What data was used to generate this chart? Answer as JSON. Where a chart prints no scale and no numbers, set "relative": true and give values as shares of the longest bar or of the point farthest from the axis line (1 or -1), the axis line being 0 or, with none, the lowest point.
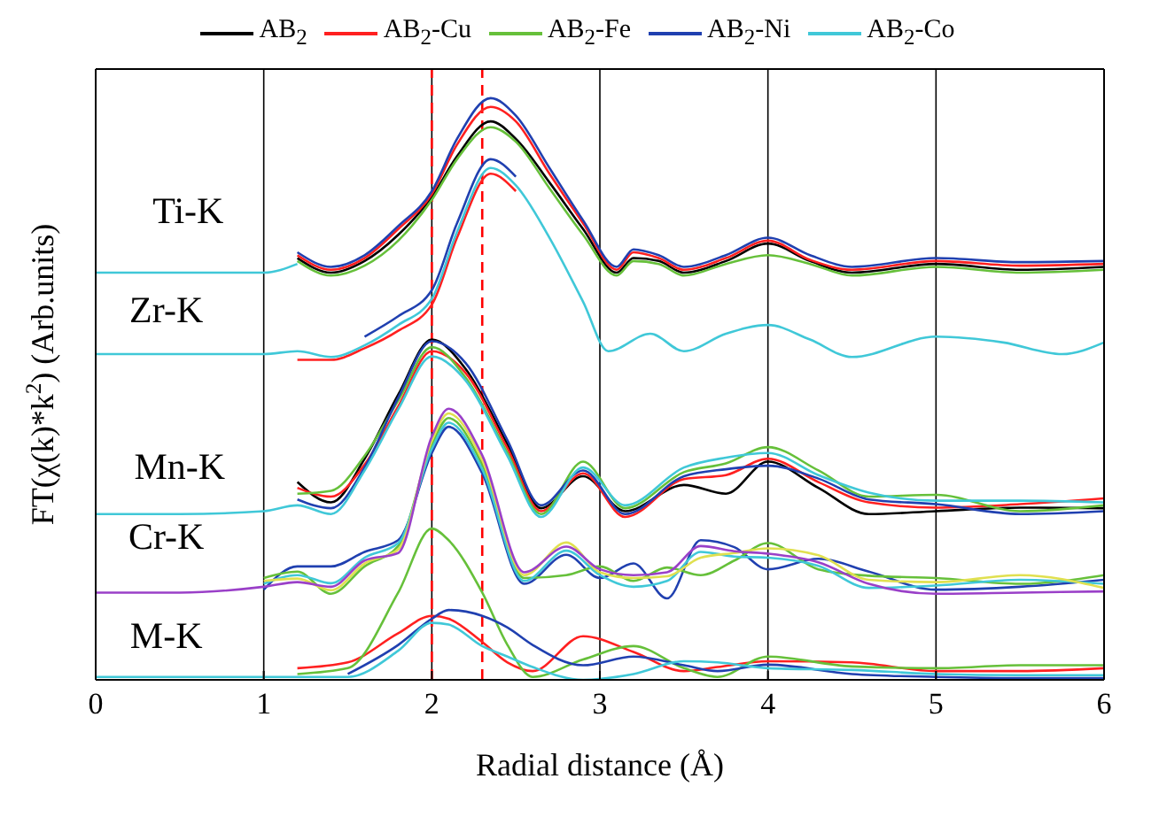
{
  "chart_data": {
    "type": "line",
    "relative": true,
    "xlabel": "Radial distance (Å)",
    "ylabel": "FT(χ(k)*k$^{2}$) (Arb.units)",
    "xlim": [
      0,
      6
    ],
    "xticks": [
      0,
      1,
      2,
      3,
      4,
      5,
      6
    ],
    "grid": "x",
    "legend": "top",
    "line_style": "solid",
    "ref_lines": [
      {
        "axis": "x",
        "value": 2.0,
        "color": "#ff0000",
        "line_style": "dashed"
      },
      {
        "axis": "x",
        "value": 2.3,
        "color": "#ff0000",
        "line_style": "dashed"
      }
    ],
    "annotations": [
      "Ti-K",
      "Zr-K",
      "Mn-K",
      "Cr-K",
      "M-K"
    ],
    "series": [
      {
        "name": "AB$_{2}$",
        "color": "#000000",
        "x": [
          1.2,
          1.4,
          1.6,
          1.8,
          2,
          2.15,
          2.35,
          2.5,
          2.7,
          2.9,
          3.1,
          3.2,
          3.35,
          3.5,
          3.75,
          4,
          4.25,
          4.5,
          5,
          5.5,
          6
        ],
        "values": [
          0.725,
          0.7,
          0.72,
          0.765,
          0.83,
          0.9,
          0.96,
          0.93,
          0.855,
          0.775,
          0.7,
          0.725,
          0.72,
          0.7,
          0.72,
          0.75,
          0.72,
          0.7,
          0.715,
          0.705,
          0.71
        ]
      },
      {
        "name": "AB$_{2}$-Cu",
        "color": "#ff2020",
        "x": [
          1.2,
          1.4,
          1.6,
          1.8,
          2,
          2.15,
          2.35,
          2.5,
          2.7,
          2.9,
          3.1,
          3.2,
          3.35,
          3.5,
          3.75,
          4,
          4.25,
          4.5,
          5,
          5.5,
          6
        ],
        "values": [
          0.73,
          0.705,
          0.725,
          0.775,
          0.835,
          0.92,
          0.985,
          0.96,
          0.87,
          0.785,
          0.705,
          0.735,
          0.725,
          0.705,
          0.725,
          0.755,
          0.722,
          0.705,
          0.72,
          0.712,
          0.715
        ]
      },
      {
        "name": "AB$_{2}$-Fe",
        "color": "#66c03a",
        "x": [
          1.2,
          1.4,
          1.6,
          1.8,
          2,
          2.15,
          2.35,
          2.5,
          2.7,
          2.9,
          3.1,
          3.2,
          3.35,
          3.5,
          3.75,
          4,
          4.25,
          4.5,
          5,
          5.5,
          6
        ],
        "values": [
          0.72,
          0.695,
          0.712,
          0.755,
          0.825,
          0.895,
          0.95,
          0.925,
          0.845,
          0.765,
          0.695,
          0.72,
          0.715,
          0.695,
          0.715,
          0.73,
          0.715,
          0.695,
          0.71,
          0.7,
          0.705
        ]
      },
      {
        "name": "AB$_{2}$-Ni",
        "color": "#2040b0",
        "x": [
          1.2,
          1.4,
          1.6,
          1.8,
          2,
          2.15,
          2.35,
          2.5,
          2.7,
          2.9,
          3.1,
          3.2,
          3.35,
          3.5,
          3.75,
          4,
          4.25,
          4.5,
          5,
          5.5,
          6
        ],
        "values": [
          0.735,
          0.71,
          0.73,
          0.78,
          0.84,
          0.93,
          1.0,
          0.97,
          0.88,
          0.79,
          0.71,
          0.74,
          0.73,
          0.71,
          0.73,
          0.76,
          0.73,
          0.71,
          0.725,
          0.718,
          0.72
        ]
      },
      {
        "name": "AB$_{2}$-Co",
        "color": "#40c8d8",
        "x": [
          0,
          0.5,
          1,
          1.2
        ],
        "values": [
          0.7,
          0.7,
          0.7,
          0.715
        ]
      },
      {
        "color": "#ff2020",
        "x": [
          1.2,
          1.4,
          1.6,
          1.8,
          2,
          2.15,
          2.35,
          2.5
        ],
        "values": [
          0.55,
          0.55,
          0.57,
          0.6,
          0.645,
          0.76,
          0.87,
          0.84
        ]
      },
      {
        "color": "#2040b0",
        "x": [
          1.6,
          1.8,
          2,
          2.15,
          2.35,
          2.5
        ],
        "values": [
          0.59,
          0.625,
          0.67,
          0.785,
          0.895,
          0.865
        ]
      },
      {
        "color": "#40c8d8",
        "x": [
          0,
          0.5,
          1,
          1.2,
          1.4,
          1.6,
          1.8,
          2,
          2.15,
          2.35,
          2.5,
          2.7,
          2.9,
          3.05,
          3.3,
          3.5,
          3.75,
          4,
          4.25,
          4.5,
          5,
          5.4,
          5.75,
          6
        ],
        "values": [
          0.56,
          0.56,
          0.56,
          0.565,
          0.555,
          0.575,
          0.61,
          0.655,
          0.77,
          0.88,
          0.85,
          0.76,
          0.65,
          0.565,
          0.595,
          0.565,
          0.595,
          0.61,
          0.585,
          0.555,
          0.59,
          0.58,
          0.56,
          0.58
        ]
      },
      {
        "color": "#000000",
        "x": [
          1.2,
          1.4,
          1.6,
          1.8,
          2,
          2.2,
          2.45,
          2.65,
          2.9,
          3.15,
          3.5,
          3.75,
          4,
          4.3,
          4.6,
          5,
          5.5,
          6
        ],
        "values": [
          0.34,
          0.305,
          0.38,
          0.49,
          0.585,
          0.535,
          0.405,
          0.295,
          0.35,
          0.29,
          0.335,
          0.32,
          0.375,
          0.33,
          0.285,
          0.29,
          0.296,
          0.295
        ]
      },
      {
        "color": "#ff2020",
        "x": [
          1.2,
          1.4,
          1.6,
          1.8,
          2,
          2.2,
          2.45,
          2.65,
          2.9,
          3.15,
          3.5,
          3.75,
          4,
          4.3,
          4.6,
          5,
          5.5,
          6
        ],
        "values": [
          0.33,
          0.315,
          0.37,
          0.47,
          0.565,
          0.528,
          0.398,
          0.29,
          0.355,
          0.28,
          0.345,
          0.352,
          0.38,
          0.34,
          0.305,
          0.296,
          0.302,
          0.312
        ]
      },
      {
        "color": "#66c03a",
        "x": [
          1.2,
          1.4,
          1.6,
          1.8,
          2,
          2.2,
          2.45,
          2.65,
          2.9,
          3.15,
          3.5,
          3.75,
          4,
          4.3,
          4.6,
          5,
          5.5,
          6
        ],
        "values": [
          0.32,
          0.325,
          0.385,
          0.48,
          0.572,
          0.52,
          0.39,
          0.285,
          0.375,
          0.295,
          0.357,
          0.372,
          0.4,
          0.36,
          0.315,
          0.318,
          0.29,
          0.3
        ]
      },
      {
        "color": "#2040b0",
        "x": [
          1.2,
          1.4,
          1.6,
          1.8,
          2,
          2.2,
          2.45,
          2.65,
          2.9,
          3.15,
          3.5,
          3.75,
          4,
          4.3,
          4.6,
          5,
          5.5,
          6
        ],
        "values": [
          0.31,
          0.295,
          0.365,
          0.485,
          0.582,
          0.545,
          0.412,
          0.3,
          0.36,
          0.285,
          0.35,
          0.362,
          0.368,
          0.346,
          0.31,
          0.302,
          0.285,
          0.29
        ]
      },
      {
        "color": "#40c8d8",
        "x": [
          0,
          0.5,
          1,
          1.2,
          1.4,
          1.6,
          1.8,
          2,
          2.2,
          2.45,
          2.65,
          2.9,
          3.15,
          3.5,
          3.75,
          4,
          4.3,
          4.6,
          5,
          5.5,
          6
        ],
        "values": [
          0.285,
          0.285,
          0.29,
          0.3,
          0.285,
          0.36,
          0.465,
          0.556,
          0.515,
          0.385,
          0.28,
          0.365,
          0.3,
          0.365,
          0.382,
          0.39,
          0.352,
          0.322,
          0.308,
          0.308,
          0.305
        ]
      },
      {
        "color": "#2040b0",
        "x": [
          1,
          1.2,
          1.4,
          1.6,
          1.8,
          2,
          2.1,
          2.3,
          2.55,
          2.8,
          3,
          3.2,
          3.4,
          3.6,
          3.8,
          4,
          4.3,
          4.6,
          5,
          5.5,
          6
        ],
        "values": [
          0.155,
          0.195,
          0.195,
          0.22,
          0.24,
          0.39,
          0.435,
          0.355,
          0.165,
          0.215,
          0.175,
          0.2,
          0.14,
          0.24,
          0.228,
          0.19,
          0.208,
          0.186,
          0.155,
          0.16,
          0.172
        ]
      },
      {
        "color": "#66c03a",
        "x": [
          1,
          1.2,
          1.4,
          1.6,
          1.8,
          2,
          2.1,
          2.3,
          2.55,
          2.8,
          3,
          3.2,
          3.4,
          3.6,
          3.8,
          4,
          4.3,
          4.6,
          5,
          5.5,
          6
        ],
        "values": [
          0.175,
          0.186,
          0.148,
          0.195,
          0.23,
          0.404,
          0.45,
          0.37,
          0.175,
          0.18,
          0.195,
          0.17,
          0.193,
          0.18,
          0.205,
          0.235,
          0.19,
          0.179,
          0.175,
          0.165,
          0.18
        ]
      },
      {
        "color": "#40c8d8",
        "x": [
          1,
          1.2,
          1.4,
          1.6,
          1.8,
          2,
          2.1,
          2.3,
          2.55,
          2.8,
          3,
          3.2,
          3.4,
          3.6,
          3.8,
          4,
          4.3,
          4.6,
          5,
          5.5,
          6
        ],
        "values": [
          0.165,
          0.18,
          0.166,
          0.21,
          0.235,
          0.397,
          0.442,
          0.362,
          0.17,
          0.222,
          0.18,
          0.16,
          0.17,
          0.22,
          0.212,
          0.21,
          0.196,
          0.158,
          0.162,
          0.172,
          0.165
        ]
      },
      {
        "color": "#e0e050",
        "x": [
          1,
          1.2,
          1.4,
          1.6,
          1.8,
          2,
          2.1,
          2.3,
          2.55,
          2.8,
          3,
          3.2,
          3.4,
          3.6,
          3.8,
          4,
          4.3,
          4.6,
          5,
          5.5,
          6
        ],
        "values": [
          0.17,
          0.174,
          0.154,
          0.2,
          0.224,
          0.411,
          0.458,
          0.378,
          0.18,
          0.236,
          0.185,
          0.175,
          0.178,
          0.21,
          0.218,
          0.226,
          0.214,
          0.172,
          0.168,
          0.18,
          0.158
        ]
      },
      {
        "color": "#9a40c8",
        "x": [
          0,
          0.5,
          1,
          1.2,
          1.4,
          1.6,
          1.8,
          2,
          2.1,
          2.3,
          2.55,
          2.8,
          3,
          3.2,
          3.4,
          3.6,
          3.8,
          4,
          4.3,
          4.6,
          5,
          5.5,
          6
        ],
        "values": [
          0.15,
          0.15,
          0.16,
          0.168,
          0.16,
          0.205,
          0.218,
          0.418,
          0.466,
          0.386,
          0.185,
          0.229,
          0.19,
          0.18,
          0.185,
          0.23,
          0.221,
          0.217,
          0.202,
          0.165,
          0.148,
          0.15,
          0.152
        ]
      },
      {
        "color": "#ff2020",
        "x": [
          1.2,
          1.5,
          1.8,
          2,
          2.1,
          2.3,
          2.45,
          2.6,
          2.9,
          3.2,
          3.5,
          3.7,
          4,
          4.5,
          5,
          5.5,
          6
        ],
        "values": [
          0.02,
          0.03,
          0.08,
          0.11,
          0.105,
          0.065,
          0.03,
          0.015,
          0.075,
          0.048,
          0.015,
          0.022,
          0.032,
          0.03,
          0.015,
          0.015,
          0.02
        ]
      },
      {
        "color": "#66c03a",
        "x": [
          1.2,
          1.5,
          1.8,
          2,
          2.1,
          2.3,
          2.45,
          2.6,
          2.9,
          3.2,
          3.5,
          3.7,
          4,
          4.5,
          5,
          5.5,
          6
        ],
        "values": [
          0.01,
          0.02,
          0.15,
          0.26,
          0.24,
          0.15,
          0.06,
          0.005,
          0.035,
          0.058,
          0.02,
          0.005,
          0.04,
          0.023,
          0.02,
          0.025,
          0.025
        ]
      },
      {
        "color": "#2040b0",
        "x": [
          1.5,
          1.8,
          2,
          2.1,
          2.3,
          2.45,
          2.6,
          2.9,
          3.2,
          3.5,
          3.7,
          4,
          4.5,
          5,
          5.5,
          6
        ],
        "values": [
          0.01,
          0.06,
          0.105,
          0.12,
          0.11,
          0.09,
          0.06,
          0.025,
          0.04,
          0.025,
          0.015,
          0.026,
          0.01,
          0.005,
          0.003,
          0.003
        ]
      },
      {
        "color": "#40c8d8",
        "x": [
          0,
          0.5,
          1,
          1.2,
          1.5,
          1.8,
          2,
          2.1,
          2.3,
          2.45,
          2.6,
          2.9,
          3.2,
          3.5,
          3.7,
          4,
          4.5,
          5,
          5.5,
          6
        ],
        "values": [
          0.005,
          0.005,
          0.005,
          0.005,
          0.005,
          0.05,
          0.098,
          0.095,
          0.058,
          0.04,
          0.022,
          0.0,
          0.01,
          0.032,
          0.03,
          0.02,
          0.017,
          0.01,
          0.008,
          0.008
        ]
      }
    ]
  }
}
